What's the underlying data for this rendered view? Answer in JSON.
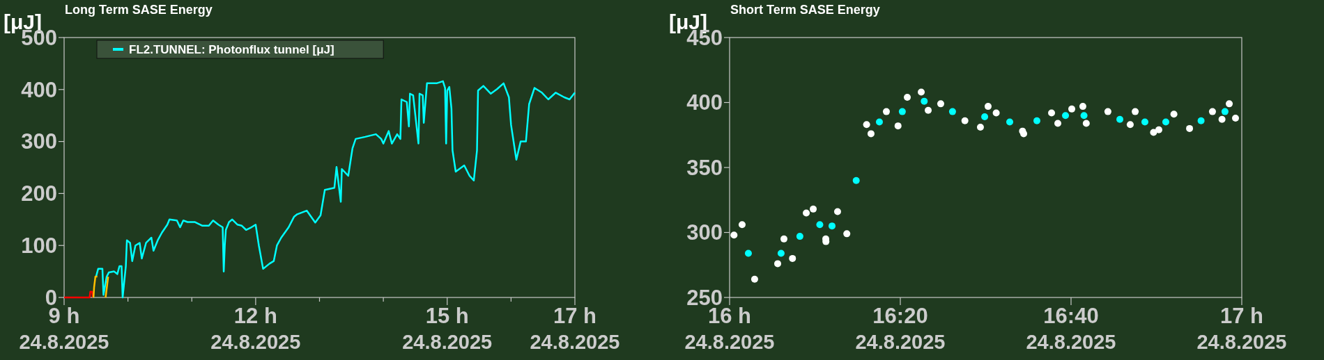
{
  "chart_data": [
    {
      "type": "line",
      "title": "Long Term SASE Energy",
      "ylabel": "[μJ]",
      "xlim": [
        "2025-08-24T09:00",
        "2025-08-24T17:00"
      ],
      "ylim": [
        0,
        500
      ],
      "yticks": [
        0,
        100,
        200,
        300,
        400,
        500
      ],
      "xticks": [
        {
          "value": "2025-08-24T09:00",
          "label": "9 h\n24.8.2025"
        },
        {
          "value": "2025-08-24T10:00",
          "label": null
        },
        {
          "value": "2025-08-24T11:00",
          "label": null
        },
        {
          "value": "2025-08-24T12:00",
          "label": "12 h\n24.8.2025"
        },
        {
          "value": "2025-08-24T13:00",
          "label": null
        },
        {
          "value": "2025-08-24T14:00",
          "label": null
        },
        {
          "value": "2025-08-24T15:00",
          "label": "15 h\n24.8.2025"
        },
        {
          "value": "2025-08-24T16:00",
          "label": null
        },
        {
          "value": "2025-08-24T17:00",
          "label": "17 h\n24.8.2025"
        }
      ],
      "legend": "top left",
      "series": [
        {
          "name": "FL2.TUNNEL: Photonflux tunnel [μJ]",
          "color": "#00ffff",
          "x": [
            "2025-08-24T09:30",
            "2025-08-24T09:32",
            "2025-08-24T09:36",
            "2025-08-24T09:37",
            "2025-08-24T09:40",
            "2025-08-24T09:42",
            "2025-08-24T09:47",
            "2025-08-24T09:50",
            "2025-08-24T09:52",
            "2025-08-24T09:54",
            "2025-08-24T09:55",
            "2025-08-24T09:58",
            "2025-08-24T09:59",
            "2025-08-24T10:02",
            "2025-08-24T10:04",
            "2025-08-24T10:07",
            "2025-08-24T10:11",
            "2025-08-24T10:13",
            "2025-08-24T10:17",
            "2025-08-24T10:22",
            "2025-08-24T10:24",
            "2025-08-24T10:28",
            "2025-08-24T10:32",
            "2025-08-24T10:37",
            "2025-08-24T10:39",
            "2025-08-24T10:46",
            "2025-08-24T10:49",
            "2025-08-24T10:52",
            "2025-08-24T10:56",
            "2025-08-24T11:03",
            "2025-08-24T11:10",
            "2025-08-24T11:16",
            "2025-08-24T11:20",
            "2025-08-24T11:25",
            "2025-08-24T11:29",
            "2025-08-24T11:30",
            "2025-08-24T11:31",
            "2025-08-24T11:32",
            "2025-08-24T11:35",
            "2025-08-24T11:38",
            "2025-08-24T11:43",
            "2025-08-24T11:47",
            "2025-08-24T11:51",
            "2025-08-24T11:56",
            "2025-08-24T12:00",
            "2025-08-24T12:03",
            "2025-08-24T12:07",
            "2025-08-24T12:13",
            "2025-08-24T12:17",
            "2025-08-24T12:20",
            "2025-08-24T12:24",
            "2025-08-24T12:31",
            "2025-08-24T12:36",
            "2025-08-24T12:39",
            "2025-08-24T12:48",
            "2025-08-24T12:56",
            "2025-08-24T13:01",
            "2025-08-24T13:05",
            "2025-08-24T13:14",
            "2025-08-24T13:16",
            "2025-08-24T13:20",
            "2025-08-24T13:21",
            "2025-08-24T13:27",
            "2025-08-24T13:31",
            "2025-08-24T13:34",
            "2025-08-24T13:43",
            "2025-08-24T13:53",
            "2025-08-24T13:58",
            "2025-08-24T14:00",
            "2025-08-24T14:05",
            "2025-08-24T14:08",
            "2025-08-24T14:13",
            "2025-08-24T14:16",
            "2025-08-24T14:17",
            "2025-08-24T14:22",
            "2025-08-24T14:24",
            "2025-08-24T14:25",
            "2025-08-24T14:28",
            "2025-08-24T14:33",
            "2025-08-24T14:34",
            "2025-08-24T14:37",
            "2025-08-24T14:38",
            "2025-08-24T14:41",
            "2025-08-24T14:50",
            "2025-08-24T14:56",
            "2025-08-24T14:58",
            "2025-08-24T14:59",
            "2025-08-24T15:00",
            "2025-08-24T15:02",
            "2025-08-24T15:04",
            "2025-08-24T15:05",
            "2025-08-24T15:08",
            "2025-08-24T15:16",
            "2025-08-24T15:21",
            "2025-08-24T15:25",
            "2025-08-24T15:28",
            "2025-08-24T15:29",
            "2025-08-24T15:34",
            "2025-08-24T15:41",
            "2025-08-24T15:47",
            "2025-08-24T15:53",
            "2025-08-24T15:58",
            "2025-08-24T16:00",
            "2025-08-24T16:04",
            "2025-08-24T16:05",
            "2025-08-24T16:09",
            "2025-08-24T16:14",
            "2025-08-24T16:17",
            "2025-08-24T16:22",
            "2025-08-24T16:29",
            "2025-08-24T16:35",
            "2025-08-24T16:42",
            "2025-08-24T16:50",
            "2025-08-24T16:55",
            "2025-08-24T17:00"
          ],
          "values": [
            40,
            55,
            55,
            5,
            40,
            48,
            50,
            45,
            60,
            60,
            0,
            60,
            110,
            105,
            70,
            100,
            105,
            75,
            105,
            115,
            90,
            110,
            125,
            140,
            150,
            148,
            135,
            148,
            145,
            145,
            138,
            138,
            148,
            140,
            135,
            50,
            100,
            130,
            145,
            150,
            140,
            138,
            130,
            135,
            140,
            100,
            55,
            65,
            70,
            100,
            115,
            135,
            155,
            160,
            167,
            144,
            158,
            207,
            211,
            251,
            184,
            247,
            234,
            287,
            305,
            309,
            314,
            305,
            296,
            320,
            296,
            314,
            305,
            381,
            376,
            329,
            392,
            389,
            296,
            392,
            389,
            336,
            412,
            412,
            416,
            403,
            296,
            398,
            405,
            363,
            283,
            242,
            254,
            234,
            225,
            283,
            398,
            407,
            392,
            401,
            412,
            385,
            332,
            278,
            265,
            300,
            300,
            372,
            403,
            394,
            381,
            394,
            385,
            381,
            394
          ]
        },
        {
          "color": "#ff0000",
          "x": [
            "2025-08-24T09:00",
            "2025-08-24T09:24",
            "2025-08-24T09:24:36",
            "2025-08-24T09:26:24",
            "2025-08-24T09:27"
          ],
          "values": [
            0,
            0,
            11,
            11,
            0
          ]
        },
        {
          "color": "#ffc000",
          "x": [
            "2025-08-24T09:27:36",
            "2025-08-24T09:28:12",
            "2025-08-24T09:29:24",
            "2025-08-24T09:31:12",
            "2025-08-24T09:36",
            "2025-08-24T09:39",
            "2025-08-24T09:39:36",
            "2025-08-24T09:41:24"
          ],
          "values": [
            0,
            20,
            40,
            40,
            null,
            0,
            10,
            40
          ]
        }
      ]
    },
    {
      "type": "scatter",
      "title": "Short Term SASE Energy",
      "ylabel": "[μJ]",
      "xlim": [
        "2025-08-24T16:00",
        "2025-08-24T17:00"
      ],
      "ylim": [
        250,
        450
      ],
      "yticks": [
        250,
        300,
        350,
        400,
        450
      ],
      "xticks": [
        {
          "value": "2025-08-24T16:00",
          "label": "16 h\n24.8.2025"
        },
        {
          "value": "2025-08-24T16:20",
          "label": "16:20\n24.8.2025"
        },
        {
          "value": "2025-08-24T16:40",
          "label": "16:40\n24.8.2025"
        },
        {
          "value": "2025-08-24T17:00",
          "label": "17 h\n24.8.2025"
        }
      ],
      "marker": "circle",
      "series": [
        {
          "color": "#ffffff",
          "x": [
            "2025-08-24T16:00:31",
            "2025-08-24T16:01:28",
            "2025-08-24T16:02:56",
            "2025-08-24T16:05:38",
            "2025-08-24T16:06:22",
            "2025-08-24T16:07:22",
            "2025-08-24T16:08:59",
            "2025-08-24T16:09:48",
            "2025-08-24T16:11:16",
            "2025-08-24T16:11:17",
            "2025-08-24T16:12:39",
            "2025-08-24T16:13:44",
            "2025-08-24T16:16:03",
            "2025-08-24T16:16:34",
            "2025-08-24T16:18:22",
            "2025-08-24T16:19:44",
            "2025-08-24T16:20:49",
            "2025-08-24T16:22:27",
            "2025-08-24T16:23:16",
            "2025-08-24T16:24:44",
            "2025-08-24T16:27:34",
            "2025-08-24T16:29:23",
            "2025-08-24T16:30:17",
            "2025-08-24T16:31:14",
            "2025-08-24T16:34:19",
            "2025-08-24T16:34:27",
            "2025-08-24T16:37:43",
            "2025-08-24T16:38:27",
            "2025-08-24T16:40:05",
            "2025-08-24T16:41:23",
            "2025-08-24T16:41:47",
            "2025-08-24T16:44:19",
            "2025-08-24T16:46:56",
            "2025-08-24T16:47:31",
            "2025-08-24T16:49:40",
            "2025-08-24T16:50:17",
            "2025-08-24T16:52:03",
            "2025-08-24T16:53:53",
            "2025-08-24T16:56:34",
            "2025-08-24T16:57:41",
            "2025-08-24T16:58:32",
            "2025-08-24T16:59:16"
          ],
          "values": [
            298,
            306,
            264,
            276,
            295,
            280,
            315,
            318,
            295,
            293,
            316,
            299,
            383,
            376,
            393,
            382,
            404,
            408,
            394,
            399,
            386,
            381,
            397,
            392,
            378,
            376,
            392,
            384,
            395,
            397,
            384,
            393,
            383,
            393,
            377,
            379,
            391,
            380,
            393,
            387,
            399,
            388
          ]
        },
        {
          "color": "#00ffff",
          "x": [
            "2025-08-24T16:02:12",
            "2025-08-24T16:06:02",
            "2025-08-24T16:08:14",
            "2025-08-24T16:10:34",
            "2025-08-24T16:12:00",
            "2025-08-24T16:14:50",
            "2025-08-24T16:17:33",
            "2025-08-24T16:20:14",
            "2025-08-24T16:22:48",
            "2025-08-24T16:26:07",
            "2025-08-24T16:29:53",
            "2025-08-24T16:32:49",
            "2025-08-24T16:36:00",
            "2025-08-24T16:39:21",
            "2025-08-24T16:41:31",
            "2025-08-24T16:45:43",
            "2025-08-24T16:48:39",
            "2025-08-24T16:51:06",
            "2025-08-24T16:55:14",
            "2025-08-24T16:58:02"
          ],
          "values": [
            284,
            284,
            297,
            306,
            305,
            340,
            385,
            393,
            401,
            393,
            389,
            385,
            386,
            390,
            390,
            387,
            385,
            385,
            386,
            393
          ]
        }
      ]
    }
  ]
}
